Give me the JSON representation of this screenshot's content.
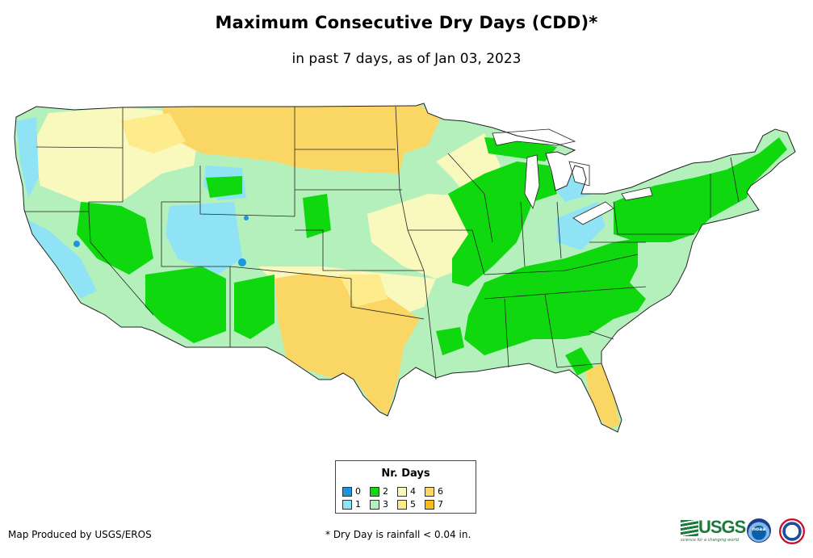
{
  "title": "Maximum Consecutive Dry Days (CDD)*",
  "subtitle": "in past 7 days, as of Jan 03, 2023",
  "legend": {
    "title": "Nr. Days",
    "items": [
      {
        "label": "0",
        "color": "#1a96e0"
      },
      {
        "label": "1",
        "color": "#8fe3f5"
      },
      {
        "label": "2",
        "color": "#0fd80f"
      },
      {
        "label": "3",
        "color": "#b4f0bc"
      },
      {
        "label": "4",
        "color": "#f9f9be"
      },
      {
        "label": "5",
        "color": "#fdeb8c"
      },
      {
        "label": "6",
        "color": "#fad764"
      },
      {
        "label": "7",
        "color": "#f7bd14"
      }
    ]
  },
  "footer": {
    "credit": "Map Produced by USGS/EROS",
    "note": "* Dry Day is rainfall < 0.04 in."
  },
  "logos": {
    "usgs": "USGS",
    "usgs_tagline": "science for a changing world",
    "noaa": "noaa"
  }
}
